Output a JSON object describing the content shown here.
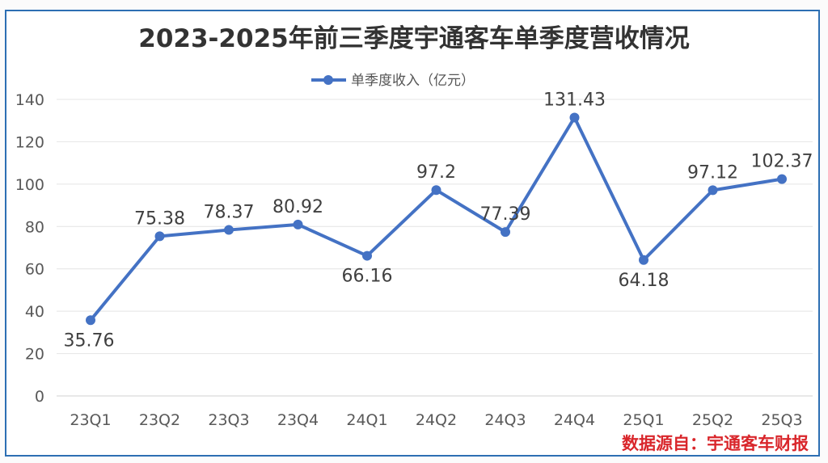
{
  "chart_data": {
    "type": "line",
    "title": "2023-2025年前三季度宇通客车单季度营收情况",
    "categories": [
      "23Q1",
      "23Q2",
      "23Q3",
      "23Q4",
      "24Q1",
      "24Q2",
      "24Q3",
      "24Q4",
      "25Q1",
      "25Q2",
      "25Q3"
    ],
    "series": [
      {
        "name": "单季度收入（亿元）",
        "values": [
          35.76,
          75.38,
          78.37,
          80.92,
          66.16,
          97.2,
          77.39,
          131.43,
          64.18,
          97.12,
          102.37
        ],
        "labels": [
          "35.76",
          "75.38",
          "78.37",
          "80.92",
          "66.16",
          "97.2",
          "77.39",
          "131.43",
          "64.18",
          "97.12",
          "102.37"
        ],
        "color": "#4472c4"
      }
    ],
    "yticks": [
      "0",
      "20",
      "40",
      "60",
      "80",
      "100",
      "120",
      "140"
    ],
    "ylim": [
      0,
      140
    ],
    "grid": true,
    "legend": "top-center",
    "source": "数据源自：宇通客车财报"
  }
}
